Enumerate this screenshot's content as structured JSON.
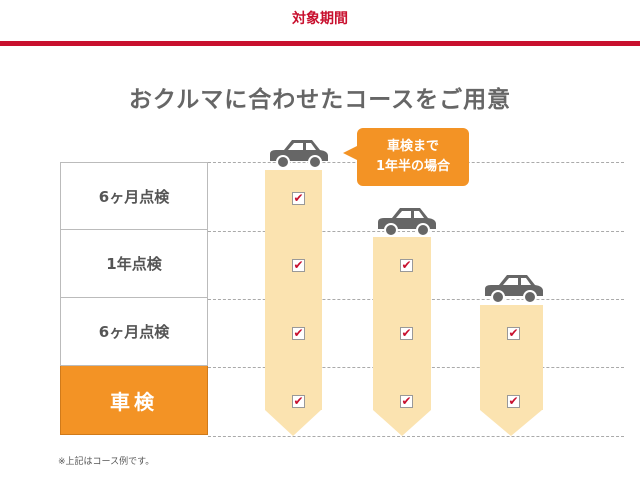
{
  "header": {
    "period_label": "対象期間",
    "accent_color": "#c8102e"
  },
  "title": "おクルマに合わせたコースをご用意",
  "rows": [
    {
      "label": "6ヶ月点検"
    },
    {
      "label": "1年点検"
    },
    {
      "label": "6ヶ月点検"
    },
    {
      "label": "車検",
      "highlight": true,
      "color": "#f39325"
    }
  ],
  "bubble": {
    "line1": "車検まで",
    "line2": "1年半の場合"
  },
  "courses": [
    {
      "checked_rows": 4
    },
    {
      "checked_rows": 3
    },
    {
      "checked_rows": 2
    }
  ],
  "check_glyph": "✔",
  "note": "※上記はコース例です。"
}
